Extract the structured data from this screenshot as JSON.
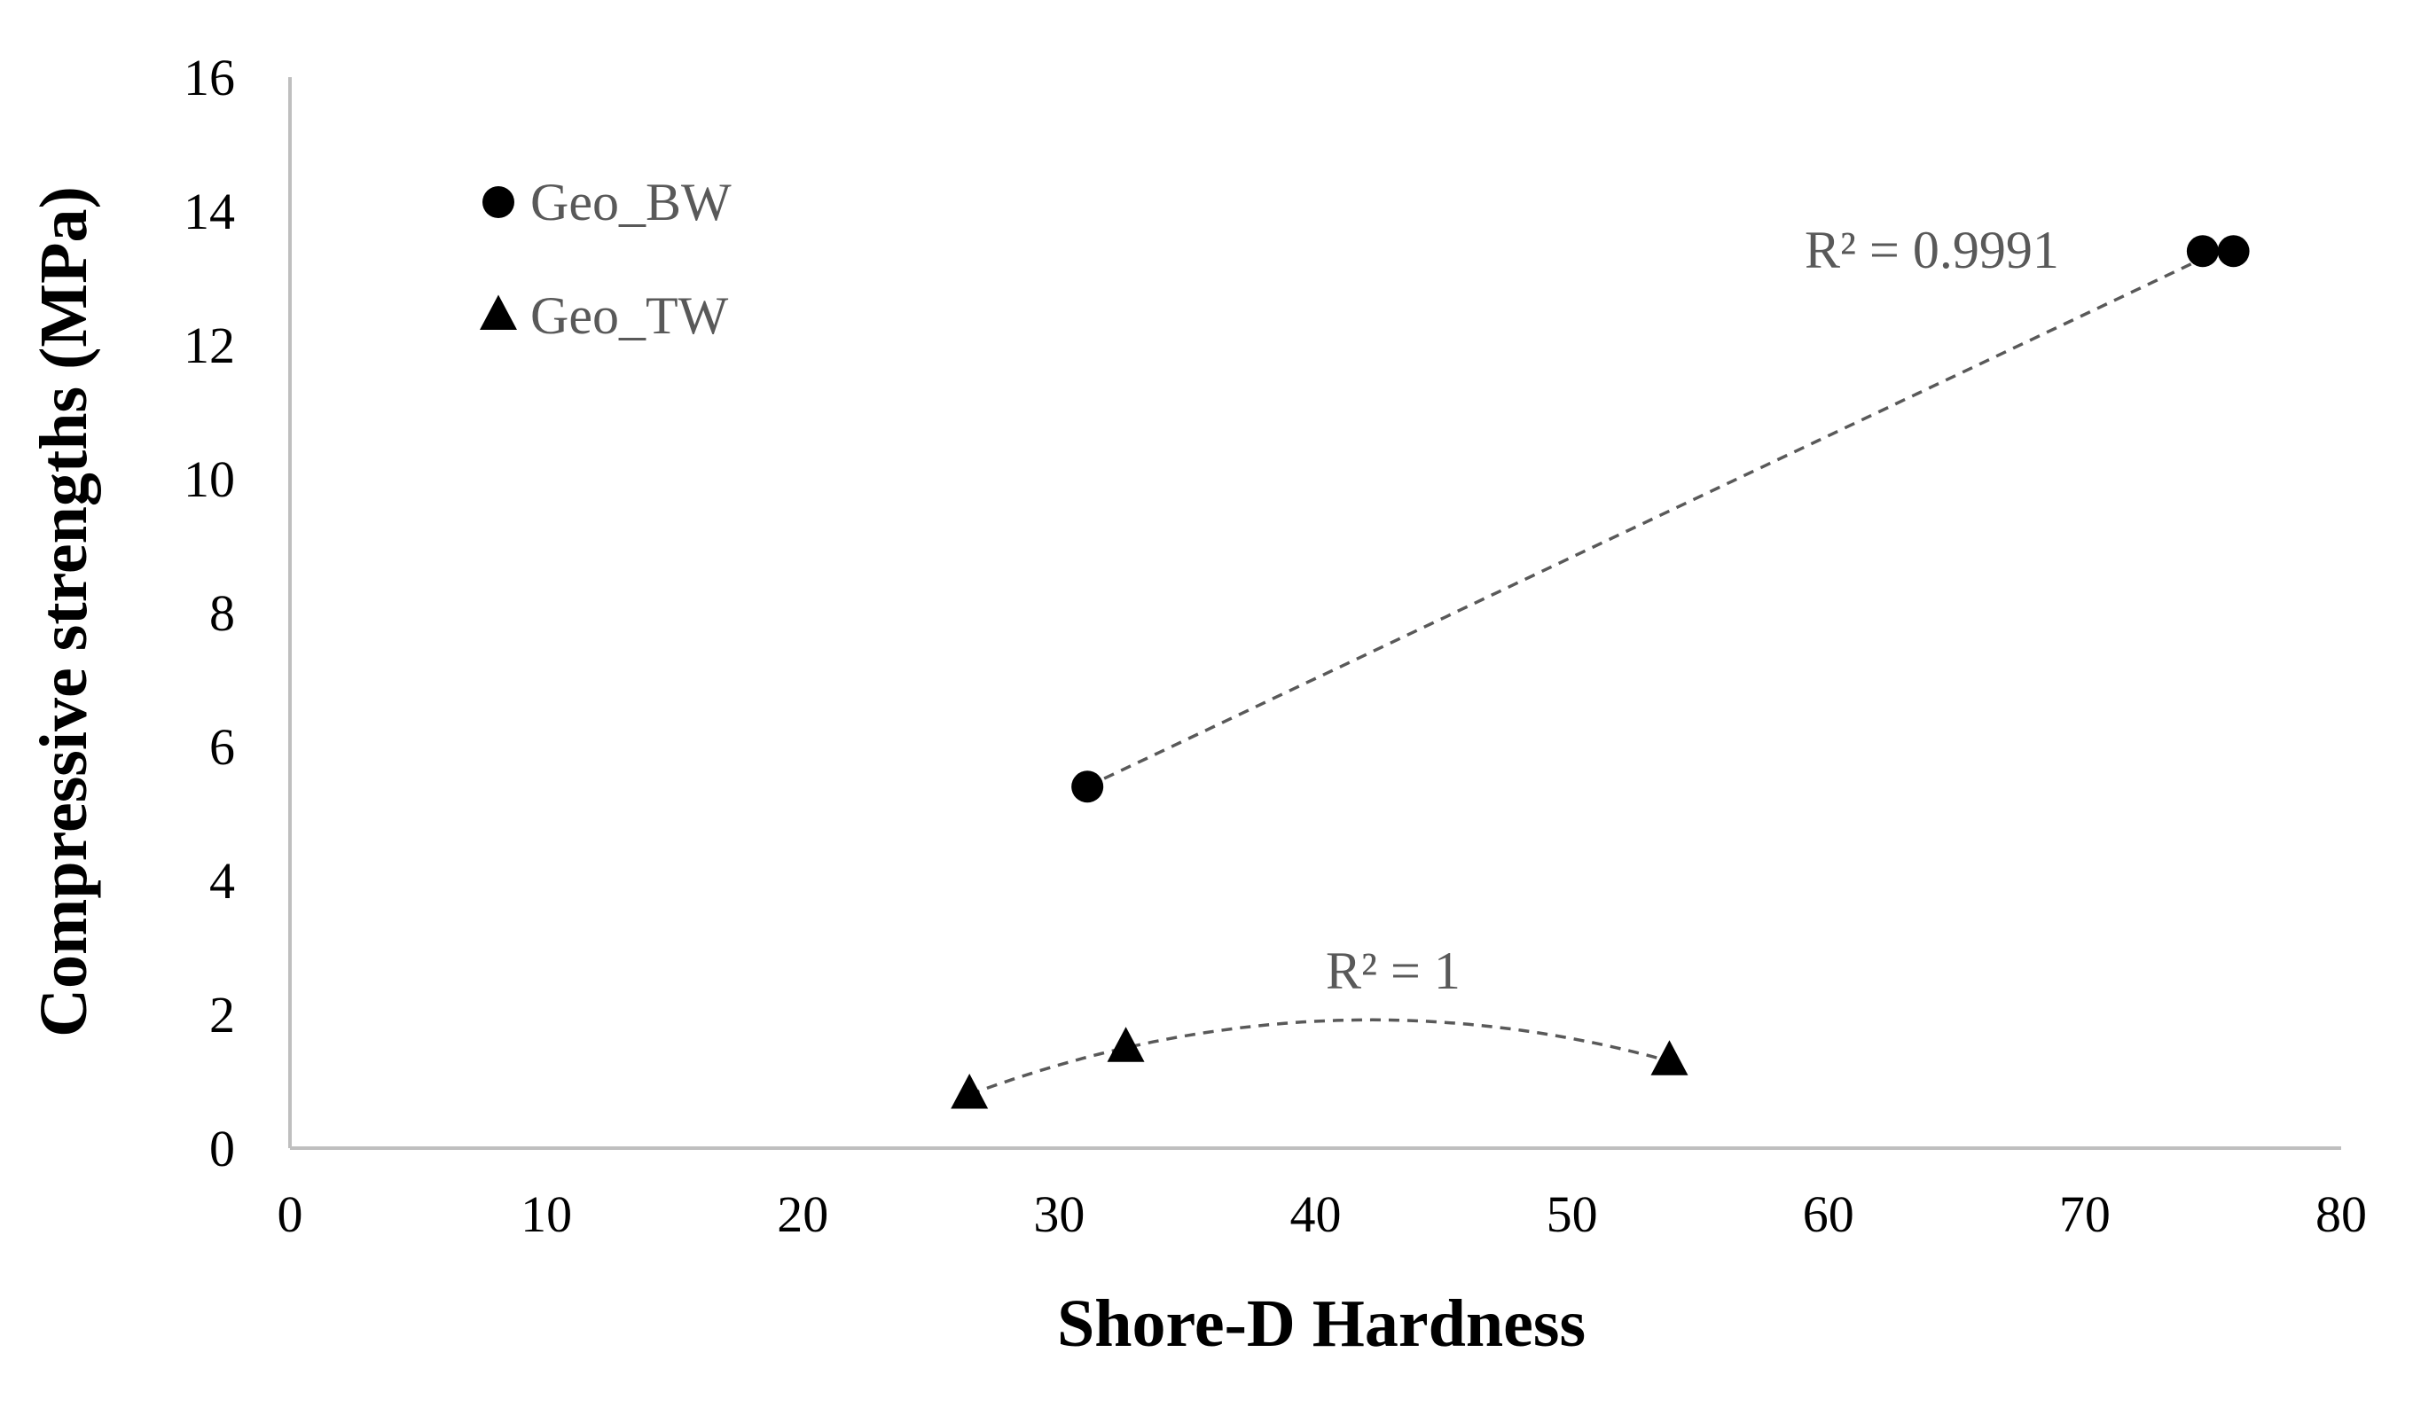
{
  "chart_data": {
    "type": "scatter",
    "title": "",
    "xlabel": "Shore-D Hardness",
    "ylabel": "Compressive strengths (MPa)",
    "xlim": [
      0,
      80
    ],
    "ylim": [
      0,
      16
    ],
    "x_ticks": [
      "0",
      "10",
      "20",
      "30",
      "40",
      "50",
      "60",
      "70",
      "80"
    ],
    "y_ticks": [
      "0",
      "2",
      "4",
      "6",
      "8",
      "10",
      "12",
      "14",
      "16"
    ],
    "grid": false,
    "legend_position": "top-left",
    "series": [
      {
        "name": "Geo_BW",
        "marker": "circle",
        "color": "#000000",
        "points": [
          {
            "x": 31.1,
            "y": 5.4
          },
          {
            "x": 74.6,
            "y": 13.4
          },
          {
            "x": 75.8,
            "y": 13.4
          }
        ],
        "trendline": {
          "type": "linear",
          "r2_label": "R² = 0.9991",
          "color": "#595959",
          "style": "dashed"
        }
      },
      {
        "name": "Geo_TW",
        "marker": "triangle",
        "color": "#000000",
        "points": [
          {
            "x": 26.5,
            "y": 0.8
          },
          {
            "x": 32.6,
            "y": 1.5
          },
          {
            "x": 53.8,
            "y": 1.3
          }
        ],
        "trendline": {
          "type": "polynomial",
          "r2_label": "R² = 1",
          "color": "#595959",
          "style": "dashed"
        }
      }
    ]
  }
}
